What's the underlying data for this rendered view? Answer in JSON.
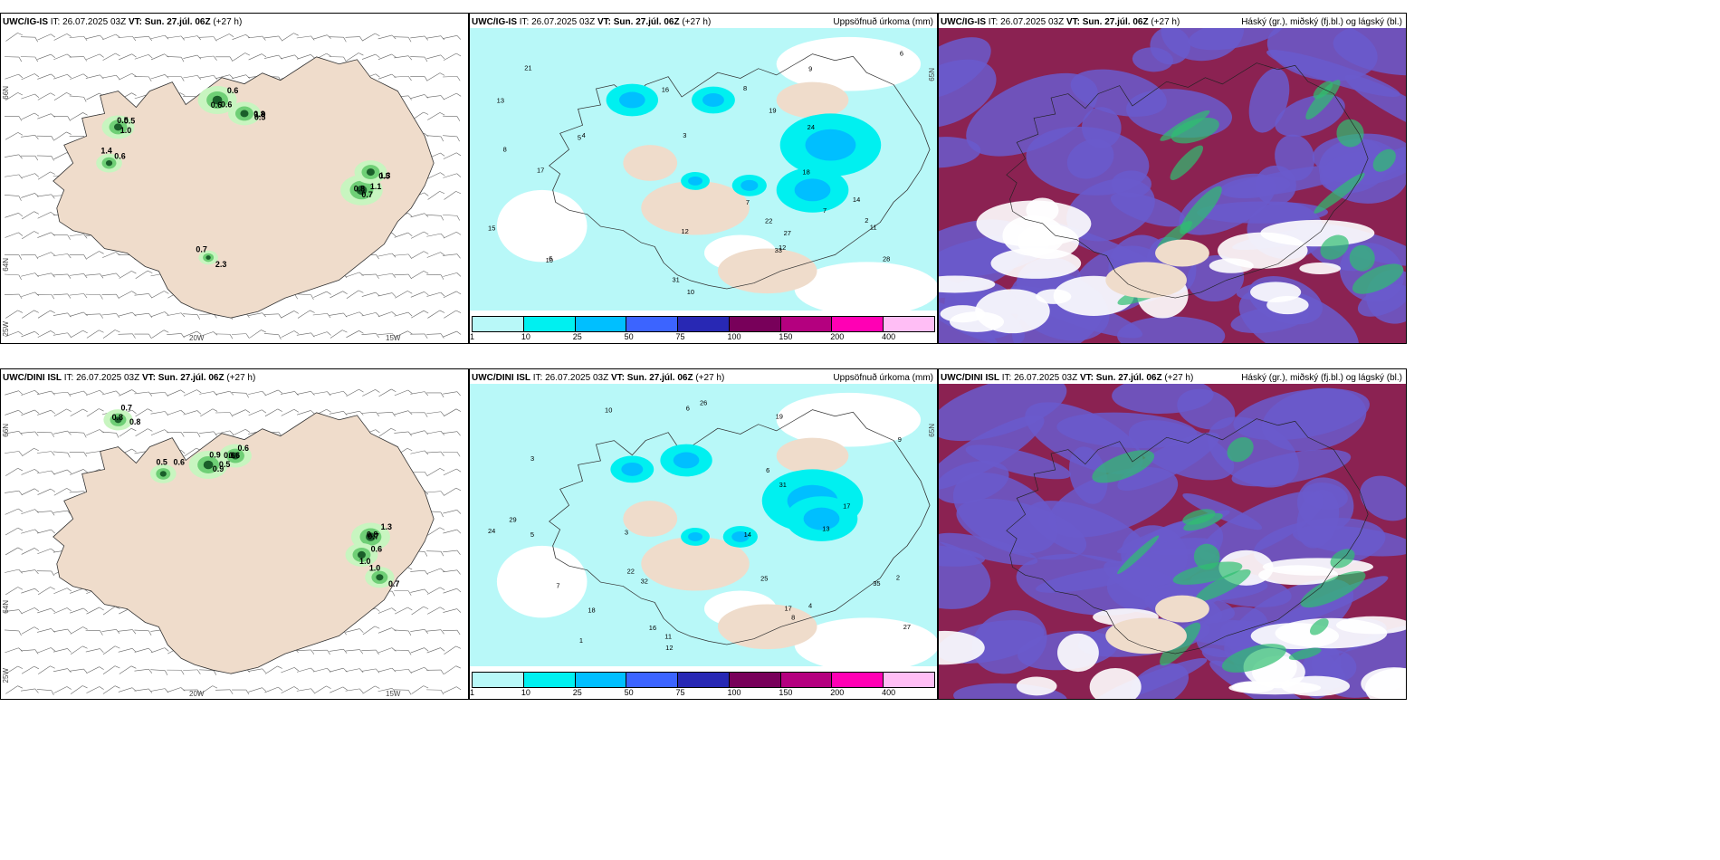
{
  "panels": [
    {
      "id": "tl",
      "model": "UWC/IG-IS",
      "it_label": "IT:",
      "it": "26.07.2025 03Z",
      "vt_label": "VT:",
      "vt": "Sun. 27.júl. 06Z",
      "lead": "(+27 h)",
      "right_title": ""
    },
    {
      "id": "tc",
      "model": "UWC/IG-IS",
      "it_label": "IT:",
      "it": "26.07.2025 03Z",
      "vt_label": "VT:",
      "vt": "Sun. 27.júl. 06Z",
      "lead": "(+27 h)",
      "right_title": "Uppsöfnuð úrkoma (mm)"
    },
    {
      "id": "tr",
      "model": "UWC/IG-IS",
      "it_label": "IT:",
      "it": "26.07.2025 03Z",
      "vt_label": "VT:",
      "vt": "Sun. 27.júl. 06Z",
      "lead": "(+27 h)",
      "right_title": "Háský (gr.), miðský (fj.bl.) og lágský (bl.)"
    },
    {
      "id": "bl",
      "model": "UWC/DINI ISL",
      "it_label": "IT:",
      "it": "26.07.2025 03Z",
      "vt_label": "VT:",
      "vt": "Sun. 27.júl. 06Z",
      "lead": "(+27 h)",
      "right_title": ""
    },
    {
      "id": "bc",
      "model": "UWC/DINI ISL",
      "it_label": "IT:",
      "it": "26.07.2025 03Z",
      "vt_label": "VT:",
      "vt": "Sun. 27.júl. 06Z",
      "lead": "(+27 h)",
      "right_title": "Uppsöfnuð úrkoma (mm)"
    },
    {
      "id": "br",
      "model": "UWC/DINI ISL",
      "it_label": "IT:",
      "it": "26.07.2025 03Z",
      "vt_label": "VT:",
      "vt": "Sun. 27.júl. 06Z",
      "lead": "(+27 h)",
      "right_title": "Háský (gr.), miðský (fj.bl.) og lágský (bl.)"
    }
  ],
  "latlon": {
    "lat1": "66N",
    "lat2": "64N",
    "lon1": "20W",
    "lon2": "15W",
    "lon3": "25W"
  },
  "colorbar": {
    "colors": [
      "#b8f8f8",
      "#00f0f0",
      "#00bfff",
      "#3c64ff",
      "#2828b4",
      "#78005a",
      "#b4007f",
      "#ff00b4",
      "#ffbef5"
    ],
    "ticks": [
      "1",
      "10",
      "25",
      "50",
      "75",
      "100",
      "150",
      "200",
      "400"
    ]
  },
  "precip_tl": [
    "0.5",
    "0.6",
    "1.0",
    "0.7",
    "1.3",
    "2.3",
    "0.6",
    "0.5",
    "0.6",
    "0.8",
    "1.1",
    "0.5",
    "0.7",
    "1.4",
    "1.0",
    "0.6",
    "0.5",
    "0.8"
  ],
  "precip_bl": [
    "0.7",
    "0.5",
    "0.6",
    "0.8",
    "1.0",
    "0.7",
    "0.6",
    "0.8",
    "0.9",
    "0.6",
    "0.7",
    "0.6",
    "1.0",
    "0.5",
    "0.8",
    "0.9",
    "0.6",
    "1.3"
  ],
  "accum_tc": [
    "3",
    "7",
    "6",
    "10",
    "14",
    "17",
    "12",
    "19",
    "21",
    "31",
    "33",
    "28",
    "24",
    "27",
    "18",
    "22",
    "8",
    "11",
    "5",
    "6",
    "4",
    "2",
    "9",
    "12",
    "15",
    "16",
    "13",
    "10",
    "7",
    "8"
  ],
  "accum_bc": [
    "1",
    "3",
    "6",
    "9",
    "18",
    "12",
    "10",
    "17",
    "16",
    "25",
    "31",
    "35",
    "24",
    "29",
    "32",
    "26",
    "27",
    "13",
    "14",
    "17",
    "22",
    "2",
    "4",
    "8",
    "5",
    "11",
    "7",
    "3",
    "6",
    "19"
  ]
}
